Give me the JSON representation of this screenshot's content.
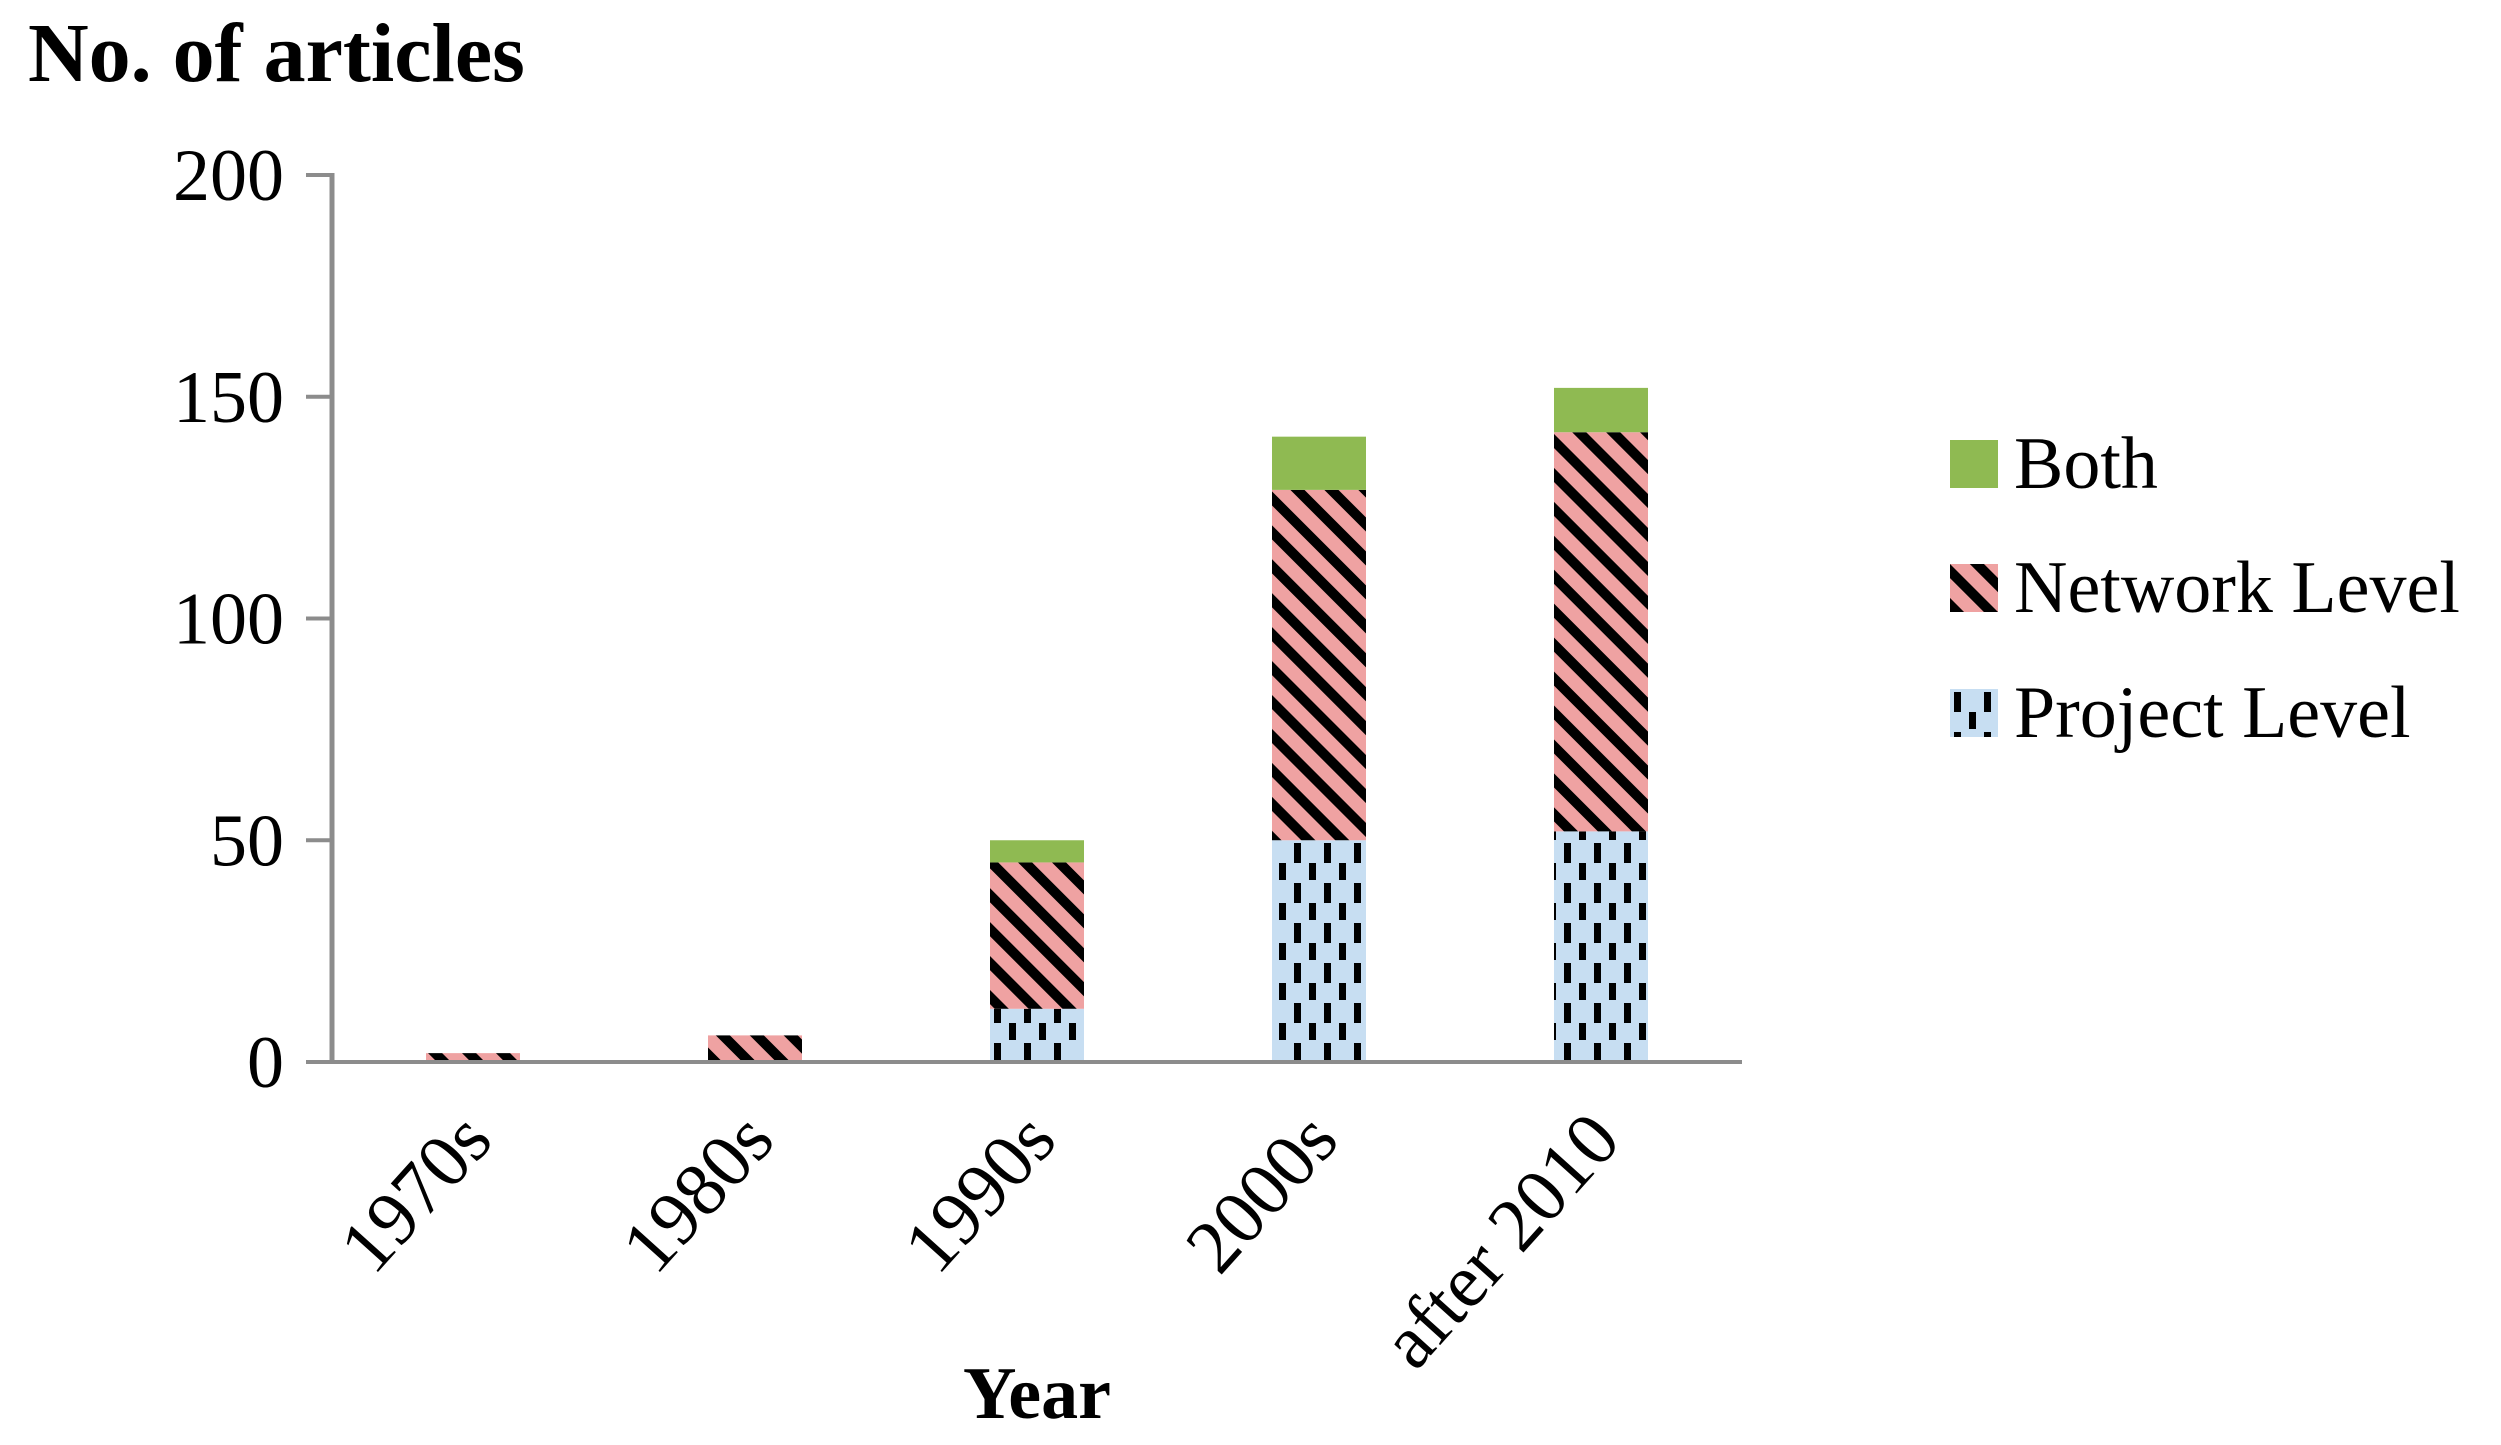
{
  "chart_data": {
    "type": "bar",
    "stacked": true,
    "title": "No. of articles",
    "ylabel": "No. of articles",
    "xlabel": "Year",
    "categories": [
      "1970s",
      "1980s",
      "1990s",
      "2000s",
      "after 2010"
    ],
    "series": [
      {
        "name": "Project Level",
        "color": "#C7DEF2",
        "pattern": "vertical-dashes",
        "values": [
          0,
          0,
          12,
          50,
          52
        ]
      },
      {
        "name": "Network Level",
        "color": "#EFA2A2",
        "pattern": "diagonal-stripes",
        "values": [
          2,
          6,
          33,
          79,
          90
        ]
      },
      {
        "name": "Both",
        "color": "#8FBA52",
        "pattern": "solid",
        "values": [
          0,
          0,
          5,
          12,
          10
        ]
      }
    ],
    "totals": [
      2,
      6,
      50,
      141,
      152
    ],
    "ylim": [
      0,
      200
    ],
    "yticks": [
      0,
      50,
      100,
      150,
      200
    ],
    "grid": false,
    "legend_position": "right",
    "axis_color": "#8C8C8C",
    "pattern_ink_color": "#000000"
  },
  "legend": {
    "items": [
      "Both",
      "Network Level",
      "Project Level"
    ]
  }
}
